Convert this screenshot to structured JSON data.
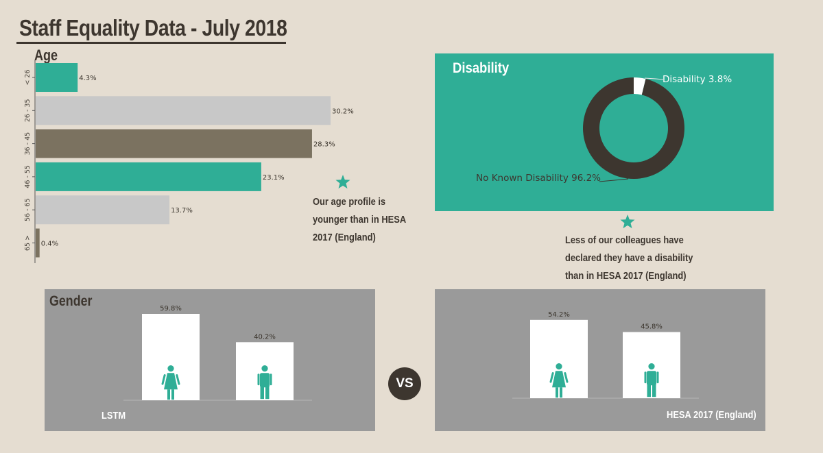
{
  "title": "Staff Equality Data - July 2018",
  "colors": {
    "teal": "#2fae96",
    "grey_bar": "#c8c8c8",
    "brown_bar": "#7b7260",
    "dark": "#3d362f",
    "panel_grey": "#9a9a9a",
    "background": "#e5ddd1"
  },
  "age": {
    "heading": "Age",
    "note": [
      "Our age profile is",
      "younger than in HESA",
      "2017 (England)"
    ]
  },
  "disability": {
    "heading": "Disability",
    "note": [
      "Less of our colleagues have",
      "declared they have a disability",
      "than in HESA 2017 (England)"
    ]
  },
  "gender": {
    "heading": "Gender",
    "vs_label": "VS",
    "lstm_label": "LSTM",
    "hesa_label": "HESA 2017 (England)",
    "icons": [
      "female-icon",
      "male-icon"
    ]
  },
  "chart_data": [
    {
      "type": "bar",
      "orientation": "horizontal",
      "title": "Age",
      "categories": [
        "< 26",
        "26 - 35",
        "36 - 45",
        "46 - 55",
        "56 - 65",
        "65 >"
      ],
      "values": [
        4.3,
        30.2,
        28.3,
        23.1,
        13.7,
        0.4
      ],
      "labels": [
        "4.3%",
        "30.2%",
        "28.3%",
        "23.1%",
        "13.7%",
        "0.4%"
      ],
      "bar_colors": [
        "#2fae96",
        "#c8c8c8",
        "#7b7260",
        "#2fae96",
        "#c8c8c8",
        "#7b7260"
      ],
      "xlim": [
        0,
        35
      ]
    },
    {
      "type": "pie",
      "donut": true,
      "title": "Disability",
      "slices": [
        {
          "label": "Disability",
          "display": "Disability 3.8%",
          "value": 3.8,
          "color": "#ffffff"
        },
        {
          "label": "No Known Disability",
          "display": "No Known Disability 96.2%",
          "value": 96.2,
          "color": "#3d362f"
        }
      ]
    },
    {
      "type": "bar",
      "title": "Gender",
      "caption": "LSTM",
      "categories": [
        "female-icon",
        "male-icon"
      ],
      "values": [
        59.8,
        40.2
      ],
      "labels": [
        "59.8%",
        "40.2%"
      ],
      "ylim": [
        0,
        62
      ]
    },
    {
      "type": "bar",
      "caption": "HESA 2017 (England)",
      "categories": [
        "female-icon",
        "male-icon"
      ],
      "values": [
        54.2,
        45.8
      ],
      "labels": [
        "54.2%",
        "45.8%"
      ],
      "ylim": [
        0,
        62
      ]
    }
  ]
}
